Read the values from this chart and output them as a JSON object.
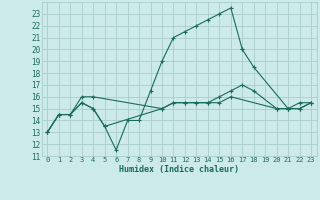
{
  "xlabel": "Humidex (Indice chaleur)",
  "bg_color": "#cceaea",
  "grid_color": "#aacccc",
  "line_color": "#1a6b5a",
  "xlim": [
    -0.5,
    23.5
  ],
  "ylim": [
    11,
    24
  ],
  "xticks": [
    0,
    1,
    2,
    3,
    4,
    5,
    6,
    7,
    8,
    9,
    10,
    11,
    12,
    13,
    14,
    15,
    16,
    17,
    18,
    19,
    20,
    21,
    22,
    23
  ],
  "yticks": [
    11,
    12,
    13,
    14,
    15,
    16,
    17,
    18,
    19,
    20,
    21,
    22,
    23
  ],
  "lines": [
    {
      "x": [
        0,
        1,
        2,
        3,
        4,
        5,
        6,
        7,
        8,
        9,
        10,
        11,
        12,
        13,
        14,
        15,
        16,
        17
      ],
      "y": [
        13,
        14.5,
        14.5,
        15.5,
        15,
        13.5,
        11.5,
        14,
        14,
        16.5,
        19,
        21,
        21.5,
        22,
        22.5,
        23,
        23.5,
        20
      ]
    },
    {
      "x": [
        17,
        18,
        21,
        22,
        23
      ],
      "y": [
        20,
        18.5,
        15,
        15,
        15.5
      ]
    },
    {
      "x": [
        0,
        1,
        2,
        3,
        4,
        5,
        10,
        11,
        12,
        13,
        14,
        15,
        16,
        17,
        18,
        20,
        21,
        22,
        23
      ],
      "y": [
        13,
        14.5,
        14.5,
        15.5,
        15,
        13.5,
        15,
        15.5,
        15.5,
        15.5,
        15.5,
        16,
        16.5,
        17,
        16.5,
        15,
        15,
        15.5,
        15.5
      ]
    },
    {
      "x": [
        0,
        1,
        2,
        3,
        4,
        10,
        11,
        12,
        13,
        14,
        15,
        16,
        20,
        21,
        22,
        23
      ],
      "y": [
        13,
        14.5,
        14.5,
        16,
        16,
        15,
        15.5,
        15.5,
        15.5,
        15.5,
        15.5,
        16,
        15,
        15,
        15,
        15.5
      ]
    }
  ]
}
